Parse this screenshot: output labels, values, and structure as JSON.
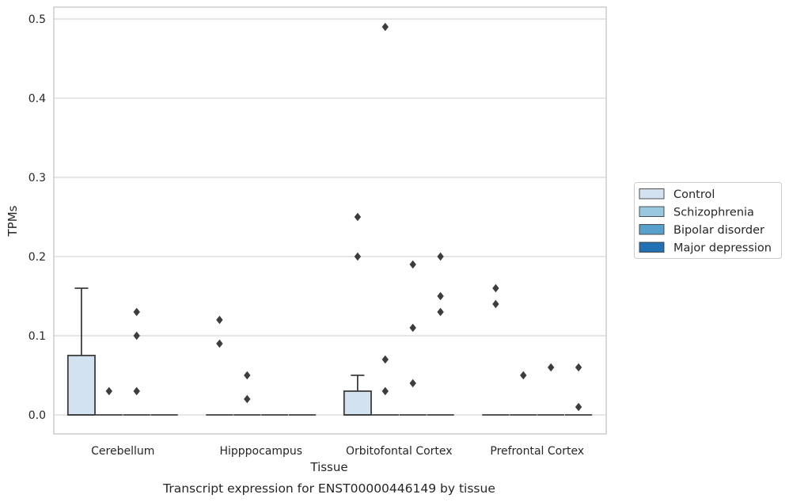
{
  "chart_data": {
    "type": "box",
    "title": "",
    "caption": "Transcript expression for ENST00000446149 by tissue",
    "xlabel": "Tissue",
    "ylabel": "TPMs",
    "ylim": [
      -0.024,
      0.515
    ],
    "yticks": [
      0.0,
      0.1,
      0.2,
      0.3,
      0.4,
      0.5
    ],
    "ytick_labels": [
      "0.0",
      "0.1",
      "0.2",
      "0.3",
      "0.4",
      "0.5"
    ],
    "grid": "horizontal",
    "legend_position": "right",
    "categories": [
      "Cerebellum",
      "Hipppocampus",
      "Orbitofontal Cortex",
      "Prefrontal Cortex"
    ],
    "series": [
      {
        "name": "Control",
        "color": "#d2e2f1",
        "boxes": [
          {
            "q1": 0.0,
            "median": 0.0,
            "q3": 0.075,
            "whisker_low": 0.0,
            "whisker_high": 0.16,
            "outliers": []
          },
          {
            "q1": 0.0,
            "median": 0.0,
            "q3": 0.0,
            "whisker_low": 0.0,
            "whisker_high": 0.0,
            "outliers": [
              0.12,
              0.09
            ]
          },
          {
            "q1": 0.0,
            "median": 0.0,
            "q3": 0.03,
            "whisker_low": 0.0,
            "whisker_high": 0.05,
            "outliers": [
              0.25,
              0.2
            ]
          },
          {
            "q1": 0.0,
            "median": 0.0,
            "q3": 0.0,
            "whisker_low": 0.0,
            "whisker_high": 0.0,
            "outliers": [
              0.16,
              0.14
            ]
          }
        ]
      },
      {
        "name": "Schizophrenia",
        "color": "#9ac8e0",
        "boxes": [
          {
            "q1": 0.0,
            "median": 0.0,
            "q3": 0.0,
            "whisker_low": 0.0,
            "whisker_high": 0.0,
            "outliers": [
              0.03
            ]
          },
          {
            "q1": 0.0,
            "median": 0.0,
            "q3": 0.0,
            "whisker_low": 0.0,
            "whisker_high": 0.0,
            "outliers": [
              0.05,
              0.02
            ]
          },
          {
            "q1": 0.0,
            "median": 0.0,
            "q3": 0.0,
            "whisker_low": 0.0,
            "whisker_high": 0.0,
            "outliers": [
              0.49,
              0.07,
              0.03
            ]
          },
          {
            "q1": 0.0,
            "median": 0.0,
            "q3": 0.0,
            "whisker_low": 0.0,
            "whisker_high": 0.0,
            "outliers": [
              0.05
            ]
          }
        ]
      },
      {
        "name": "Bipolar disorder",
        "color": "#5aa0cd",
        "boxes": [
          {
            "q1": 0.0,
            "median": 0.0,
            "q3": 0.0,
            "whisker_low": 0.0,
            "whisker_high": 0.0,
            "outliers": [
              0.13,
              0.1,
              0.03
            ]
          },
          {
            "q1": 0.0,
            "median": 0.0,
            "q3": 0.0,
            "whisker_low": 0.0,
            "whisker_high": 0.0,
            "outliers": []
          },
          {
            "q1": 0.0,
            "median": 0.0,
            "q3": 0.0,
            "whisker_low": 0.0,
            "whisker_high": 0.0,
            "outliers": [
              0.19,
              0.11,
              0.04
            ]
          },
          {
            "q1": 0.0,
            "median": 0.0,
            "q3": 0.0,
            "whisker_low": 0.0,
            "whisker_high": 0.0,
            "outliers": [
              0.06
            ]
          }
        ]
      },
      {
        "name": "Major depression",
        "color": "#2271b5",
        "boxes": [
          {
            "q1": 0.0,
            "median": 0.0,
            "q3": 0.0,
            "whisker_low": 0.0,
            "whisker_high": 0.0,
            "outliers": []
          },
          {
            "q1": 0.0,
            "median": 0.0,
            "q3": 0.0,
            "whisker_low": 0.0,
            "whisker_high": 0.0,
            "outliers": []
          },
          {
            "q1": 0.0,
            "median": 0.0,
            "q3": 0.0,
            "whisker_low": 0.0,
            "whisker_high": 0.0,
            "outliers": [
              0.2,
              0.15,
              0.13
            ]
          },
          {
            "q1": 0.0,
            "median": 0.0,
            "q3": 0.0,
            "whisker_low": 0.0,
            "whisker_high": 0.0,
            "outliers": [
              0.06,
              0.01
            ]
          }
        ]
      }
    ],
    "colors": {
      "grid": "#cccccc",
      "frame": "#cccccc",
      "box_edge": "#3d3d3d",
      "text": "#262626"
    }
  }
}
